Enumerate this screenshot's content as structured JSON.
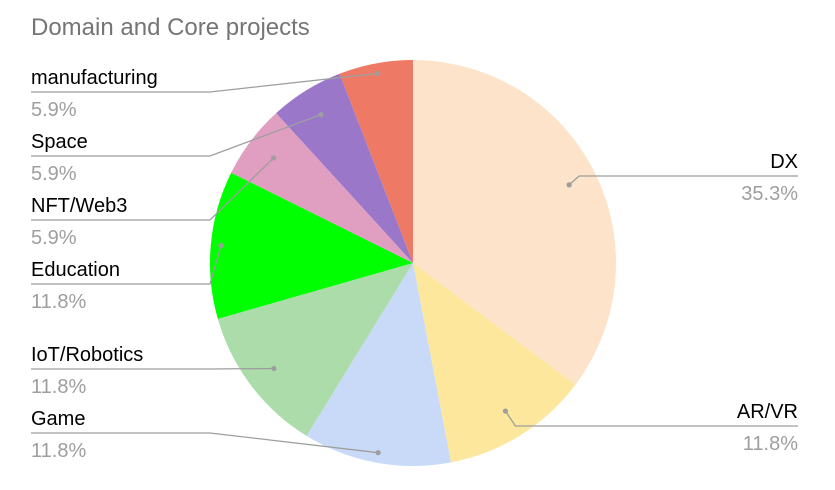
{
  "chart_data": {
    "type": "pie",
    "title": "Domain and Core projects",
    "slices": [
      {
        "label": "DX",
        "value": 35.3,
        "display": "35.3%",
        "color": "#fde3c9"
      },
      {
        "label": "AR/VR",
        "value": 11.8,
        "display": "11.8%",
        "color": "#fde79c"
      },
      {
        "label": "Game",
        "value": 11.8,
        "display": "11.8%",
        "color": "#c9daf8"
      },
      {
        "label": "IoT/Robotics",
        "value": 11.8,
        "display": "11.8%",
        "color": "#abdcaa"
      },
      {
        "label": "Education",
        "value": 11.8,
        "display": "11.8%",
        "color": "#00ff00"
      },
      {
        "label": "NFT/Web3",
        "value": 5.9,
        "display": "5.9%",
        "color": "#e09fc1"
      },
      {
        "label": "Space",
        "value": 5.9,
        "display": "5.9%",
        "color": "#9a77c8"
      },
      {
        "label": "manufacturing",
        "value": 5.9,
        "display": "5.9%",
        "color": "#ee7965"
      }
    ],
    "legend": "none",
    "label_color": "#000000",
    "percent_color": "#9e9e9e",
    "leader_color": "#9e9e9e"
  }
}
